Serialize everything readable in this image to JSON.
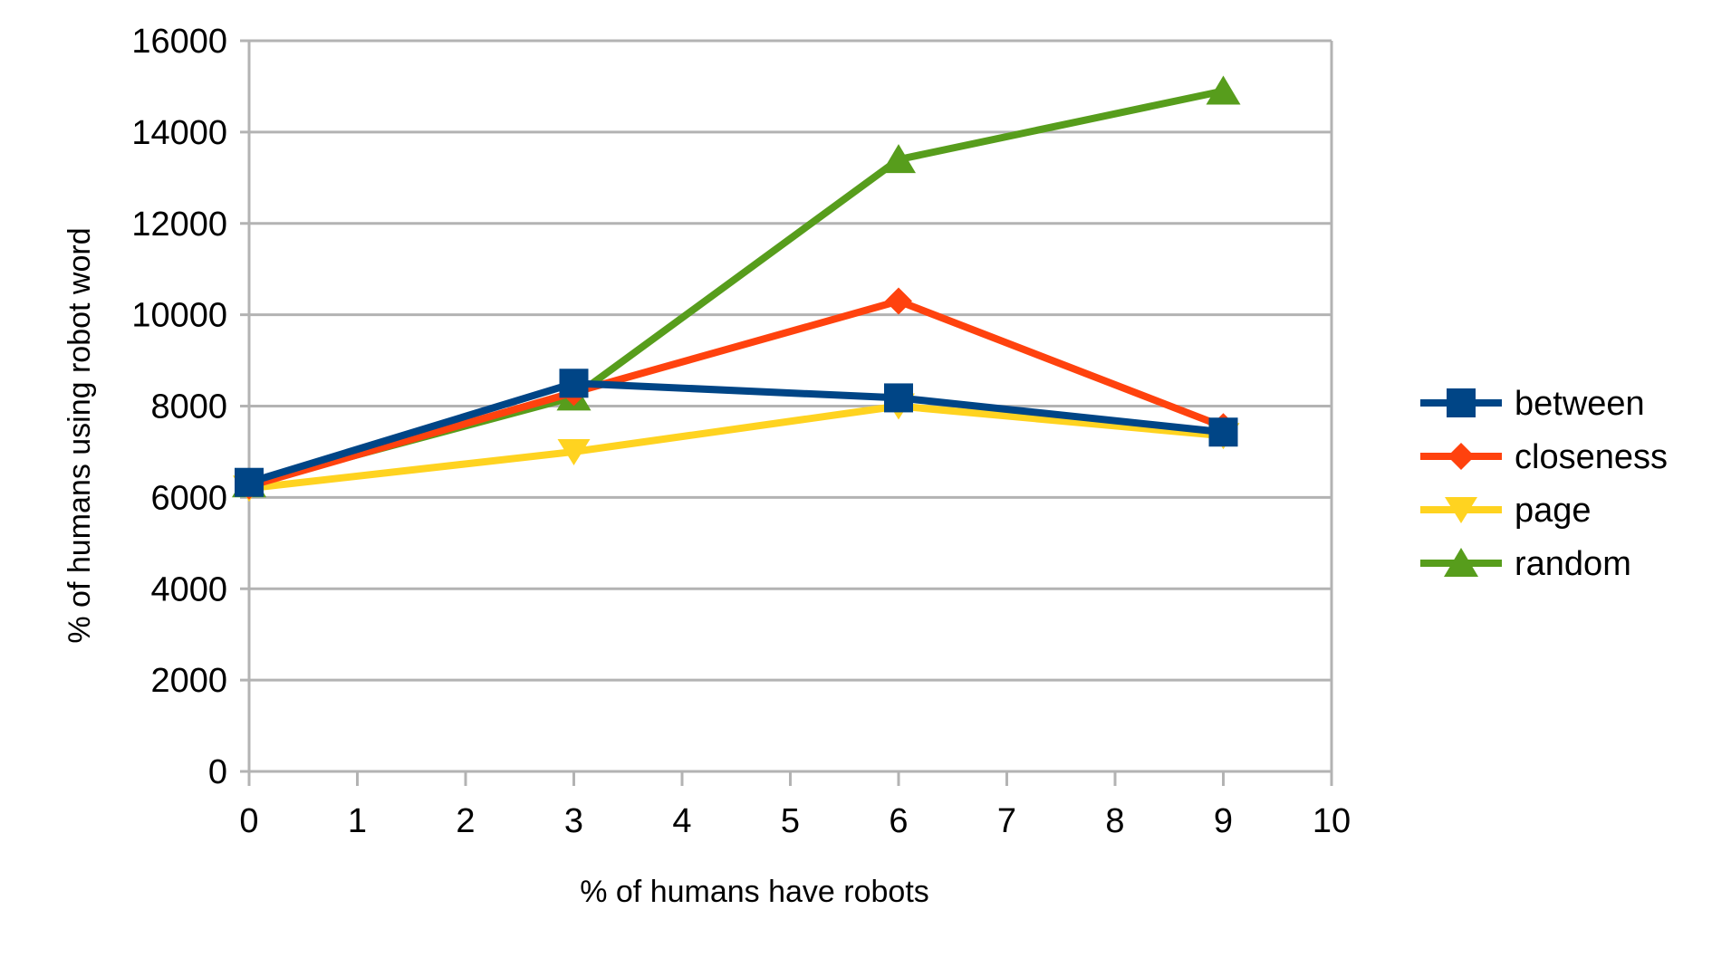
{
  "chart_data": {
    "type": "line",
    "title": "",
    "xlabel": "% of humans have robots",
    "ylabel": "% of humans using robot word",
    "xlim": [
      0,
      10
    ],
    "ylim": [
      0,
      16000
    ],
    "x_ticks": [
      0,
      1,
      2,
      3,
      4,
      5,
      6,
      7,
      8,
      9,
      10
    ],
    "y_ticks": [
      0,
      2000,
      4000,
      6000,
      8000,
      10000,
      12000,
      14000,
      16000
    ],
    "grid": "horizontal",
    "legend_position": "right",
    "x": [
      0,
      3,
      6,
      9
    ],
    "series": [
      {
        "name": "random",
        "color": "#579d1c",
        "marker": "triangle-up",
        "values": [
          6300,
          8200,
          13400,
          14900
        ]
      },
      {
        "name": "page",
        "color": "#ffd320",
        "marker": "triangle-down",
        "values": [
          6200,
          7000,
          8000,
          7350
        ]
      },
      {
        "name": "closeness",
        "color": "#ff420e",
        "marker": "diamond",
        "values": [
          6250,
          8300,
          10300,
          7550
        ]
      },
      {
        "name": "between",
        "color": "#004586",
        "marker": "square",
        "values": [
          6330,
          8500,
          8180,
          7430
        ]
      }
    ],
    "legend_order": [
      "between",
      "closeness",
      "page",
      "random"
    ]
  }
}
